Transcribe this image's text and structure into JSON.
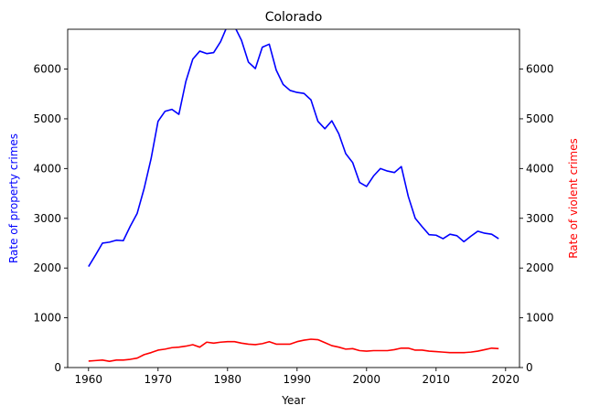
{
  "chart_data": {
    "type": "line",
    "title": "Colorado",
    "xlabel": "Year",
    "ylabel_left": "Rate of property crimes",
    "ylabel_right": "Rate of violent crimes",
    "xlim": [
      1957,
      2022
    ],
    "ylim_left": [
      0,
      6800
    ],
    "ylim_right": [
      0,
      6800
    ],
    "xticks": [
      1960,
      1970,
      1980,
      1990,
      2000,
      2010,
      2020
    ],
    "yticks_left": [
      0,
      1000,
      2000,
      3000,
      4000,
      5000,
      6000
    ],
    "yticks_right": [
      0,
      1000,
      2000,
      3000,
      4000,
      5000,
      6000
    ],
    "grid": false,
    "series": [
      {
        "name": "Rate of property crimes",
        "axis": "left",
        "color": "#0000ff",
        "x": [
          1960,
          1961,
          1962,
          1963,
          1964,
          1965,
          1966,
          1967,
          1968,
          1969,
          1970,
          1971,
          1972,
          1973,
          1974,
          1975,
          1976,
          1977,
          1978,
          1979,
          1980,
          1981,
          1982,
          1983,
          1984,
          1985,
          1986,
          1987,
          1988,
          1989,
          1990,
          1991,
          1992,
          1993,
          1994,
          1995,
          1996,
          1997,
          1998,
          1999,
          2000,
          2001,
          2002,
          2003,
          2004,
          2005,
          2006,
          2007,
          2008,
          2009,
          2010,
          2011,
          2012,
          2013,
          2014,
          2015,
          2016,
          2017,
          2018,
          2019
        ],
        "values": [
          2030,
          2260,
          2500,
          2520,
          2560,
          2550,
          2840,
          3100,
          3600,
          4200,
          4950,
          5150,
          5190,
          5090,
          5750,
          6200,
          6360,
          6310,
          6330,
          6550,
          6880,
          6860,
          6580,
          6140,
          6010,
          6440,
          6500,
          5980,
          5690,
          5570,
          5530,
          5510,
          5380,
          4950,
          4800,
          4960,
          4700,
          4300,
          4120,
          3720,
          3640,
          3850,
          4000,
          3950,
          3920,
          4040,
          3440,
          3000,
          2830,
          2670,
          2660,
          2590,
          2680,
          2650,
          2530,
          2640,
          2740,
          2700,
          2680,
          2590
        ]
      },
      {
        "name": "Rate of violent crimes",
        "axis": "right",
        "color": "#ff0000",
        "x": [
          1960,
          1961,
          1962,
          1963,
          1964,
          1965,
          1966,
          1967,
          1968,
          1969,
          1970,
          1971,
          1972,
          1973,
          1974,
          1975,
          1976,
          1977,
          1978,
          1979,
          1980,
          1981,
          1982,
          1983,
          1984,
          1985,
          1986,
          1987,
          1988,
          1989,
          1990,
          1991,
          1992,
          1993,
          1994,
          1995,
          1996,
          1997,
          1998,
          1999,
          2000,
          2001,
          2002,
          2003,
          2004,
          2005,
          2006,
          2007,
          2008,
          2009,
          2010,
          2011,
          2012,
          2013,
          2014,
          2015,
          2016,
          2017,
          2018,
          2019
        ],
        "values": [
          130,
          140,
          150,
          125,
          150,
          150,
          165,
          190,
          260,
          300,
          350,
          370,
          400,
          410,
          430,
          460,
          410,
          510,
          490,
          510,
          520,
          520,
          490,
          470,
          460,
          480,
          520,
          470,
          470,
          470,
          520,
          550,
          570,
          560,
          500,
          440,
          410,
          370,
          380,
          340,
          330,
          340,
          340,
          340,
          360,
          390,
          390,
          350,
          350,
          330,
          320,
          310,
          300,
          300,
          300,
          310,
          330,
          360,
          390,
          380
        ]
      }
    ]
  }
}
